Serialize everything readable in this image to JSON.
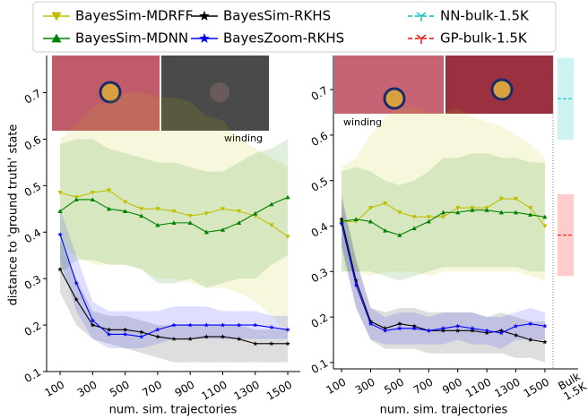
{
  "chart_data": [
    {
      "type": "line",
      "y_label": "distance to 'ground truth' state",
      "x_label": "num. sim. trajectories",
      "annotation": "winding",
      "x": [
        100,
        200,
        300,
        400,
        500,
        600,
        700,
        800,
        900,
        1000,
        1100,
        1200,
        1300,
        1400,
        1500
      ],
      "xlim": [
        17,
        1577
      ],
      "xticks": [
        100,
        300,
        500,
        700,
        900,
        1100,
        1300,
        1500
      ],
      "ylim": [
        0.1,
        0.78
      ],
      "yticks": [
        0.1,
        0.2,
        0.3,
        0.4,
        0.5,
        0.6,
        0.7
      ],
      "series": [
        {
          "name": "BayesSim-MDRFF",
          "color": "#bfbf00",
          "marker": "tri-down",
          "values": [
            0.485,
            0.475,
            0.485,
            0.49,
            0.465,
            0.45,
            0.45,
            0.445,
            0.435,
            0.44,
            0.45,
            0.445,
            0.435,
            0.415,
            0.39
          ],
          "lower": [
            0.37,
            0.35,
            0.33,
            0.33,
            0.33,
            0.32,
            0.3,
            0.3,
            0.29,
            0.28,
            0.28,
            0.27,
            0.25,
            0.22,
            0.18
          ],
          "upper": [
            0.6,
            0.63,
            0.67,
            0.68,
            0.7,
            0.7,
            0.69,
            0.69,
            0.68,
            0.65,
            0.64,
            0.6,
            0.58,
            0.56,
            0.54
          ]
        },
        {
          "name": "BayesSim-MDNN",
          "color": "#008000",
          "marker": "tri-up",
          "values": [
            0.445,
            0.47,
            0.47,
            0.45,
            0.445,
            0.435,
            0.415,
            0.42,
            0.42,
            0.4,
            0.405,
            0.42,
            0.44,
            0.46,
            0.475
          ],
          "lower": [
            0.31,
            0.34,
            0.34,
            0.33,
            0.33,
            0.32,
            0.29,
            0.29,
            0.3,
            0.28,
            0.29,
            0.3,
            0.3,
            0.33,
            0.35
          ],
          "upper": [
            0.59,
            0.6,
            0.6,
            0.58,
            0.57,
            0.56,
            0.55,
            0.55,
            0.54,
            0.53,
            0.53,
            0.55,
            0.57,
            0.58,
            0.6
          ]
        },
        {
          "name": "BayesSim-RKHS",
          "color": "#000000",
          "marker": "star",
          "values": [
            0.32,
            0.255,
            0.2,
            0.19,
            0.19,
            0.185,
            0.175,
            0.17,
            0.17,
            0.175,
            0.175,
            0.17,
            0.16,
            0.16,
            0.16
          ],
          "lower": [
            0.27,
            0.2,
            0.17,
            0.16,
            0.15,
            0.14,
            0.13,
            0.12,
            0.12,
            0.12,
            0.12,
            0.12,
            0.12,
            0.12,
            0.12
          ],
          "upper": [
            0.38,
            0.3,
            0.23,
            0.22,
            0.22,
            0.21,
            0.2,
            0.2,
            0.2,
            0.2,
            0.2,
            0.2,
            0.19,
            0.19,
            0.19
          ]
        },
        {
          "name": "BayesZoom-RKHS",
          "color": "#0000ff",
          "marker": "star",
          "values": [
            0.395,
            0.29,
            0.21,
            0.18,
            0.18,
            0.175,
            0.19,
            0.2,
            0.2,
            0.2,
            0.2,
            0.2,
            0.2,
            0.195,
            0.19
          ],
          "lower": [
            0.34,
            0.23,
            0.17,
            0.15,
            0.15,
            0.15,
            0.16,
            0.17,
            0.17,
            0.17,
            0.17,
            0.17,
            0.17,
            0.17,
            0.17
          ],
          "upper": [
            0.45,
            0.35,
            0.25,
            0.23,
            0.23,
            0.23,
            0.23,
            0.24,
            0.24,
            0.24,
            0.23,
            0.23,
            0.23,
            0.22,
            0.22
          ]
        }
      ]
    },
    {
      "type": "line",
      "x_label": "num. sim. trajectories",
      "annotation": "winding",
      "bulk_label": "Bulk\n1.5K",
      "x": [
        100,
        200,
        300,
        400,
        500,
        600,
        700,
        800,
        900,
        1000,
        1100,
        1200,
        1300,
        1400,
        1500
      ],
      "xlim": [
        44,
        1556
      ],
      "xticks": [
        100,
        300,
        500,
        700,
        900,
        1100,
        1300,
        1500
      ],
      "ylim": [
        0.086,
        0.775
      ],
      "yticks": [
        0.1,
        0.2,
        0.3,
        0.4,
        0.5,
        0.6,
        0.7
      ],
      "series": [
        {
          "color": "#bfbf00",
          "marker": "tri-down",
          "values": [
            0.41,
            0.41,
            0.44,
            0.45,
            0.43,
            0.42,
            0.42,
            0.42,
            0.44,
            0.44,
            0.44,
            0.46,
            0.46,
            0.44,
            0.4
          ],
          "lower": [
            0.3,
            0.3,
            0.29,
            0.3,
            0.3,
            0.3,
            0.29,
            0.3,
            0.3,
            0.3,
            0.3,
            0.3,
            0.3,
            0.29,
            0.28
          ],
          "upper": [
            0.53,
            0.55,
            0.6,
            0.64,
            0.66,
            0.66,
            0.65,
            0.65,
            0.66,
            0.64,
            0.63,
            0.62,
            0.6,
            0.58,
            0.55
          ]
        },
        {
          "color": "#008000",
          "marker": "tri-up",
          "values": [
            0.41,
            0.415,
            0.41,
            0.39,
            0.38,
            0.395,
            0.41,
            0.43,
            0.43,
            0.435,
            0.435,
            0.43,
            0.43,
            0.425,
            0.42
          ],
          "lower": [
            0.3,
            0.3,
            0.3,
            0.29,
            0.28,
            0.29,
            0.3,
            0.31,
            0.31,
            0.31,
            0.31,
            0.31,
            0.31,
            0.3,
            0.3
          ],
          "upper": [
            0.52,
            0.53,
            0.52,
            0.5,
            0.49,
            0.5,
            0.52,
            0.55,
            0.55,
            0.56,
            0.56,
            0.55,
            0.55,
            0.54,
            0.54
          ]
        },
        {
          "color": "#000000",
          "marker": "star",
          "values": [
            0.415,
            0.28,
            0.19,
            0.175,
            0.185,
            0.18,
            0.17,
            0.17,
            0.17,
            0.17,
            0.165,
            0.17,
            0.16,
            0.15,
            0.145
          ],
          "lower": [
            0.36,
            0.22,
            0.15,
            0.13,
            0.13,
            0.13,
            0.12,
            0.12,
            0.12,
            0.12,
            0.12,
            0.12,
            0.11,
            0.11,
            0.1
          ],
          "upper": [
            0.47,
            0.33,
            0.22,
            0.21,
            0.22,
            0.22,
            0.21,
            0.21,
            0.21,
            0.21,
            0.2,
            0.21,
            0.2,
            0.19,
            0.19
          ]
        },
        {
          "color": "#0000ff",
          "marker": "star",
          "values": [
            0.405,
            0.27,
            0.185,
            0.17,
            0.175,
            0.175,
            0.17,
            0.175,
            0.18,
            0.175,
            0.17,
            0.165,
            0.18,
            0.185,
            0.18
          ],
          "lower": [
            0.35,
            0.22,
            0.15,
            0.14,
            0.14,
            0.14,
            0.14,
            0.14,
            0.15,
            0.14,
            0.14,
            0.13,
            0.15,
            0.15,
            0.15
          ],
          "upper": [
            0.46,
            0.32,
            0.22,
            0.2,
            0.21,
            0.21,
            0.2,
            0.21,
            0.21,
            0.21,
            0.2,
            0.2,
            0.21,
            0.22,
            0.21
          ]
        }
      ],
      "bulk_series": [
        {
          "name": "NN-bulk-1.5K",
          "color": "#00bfbf",
          "value": 0.68,
          "lower": 0.59,
          "upper": 0.77
        },
        {
          "name": "GP-bulk-1.5K",
          "color": "#ff0000",
          "value": 0.38,
          "lower": 0.29,
          "upper": 0.47
        }
      ]
    }
  ]
}
